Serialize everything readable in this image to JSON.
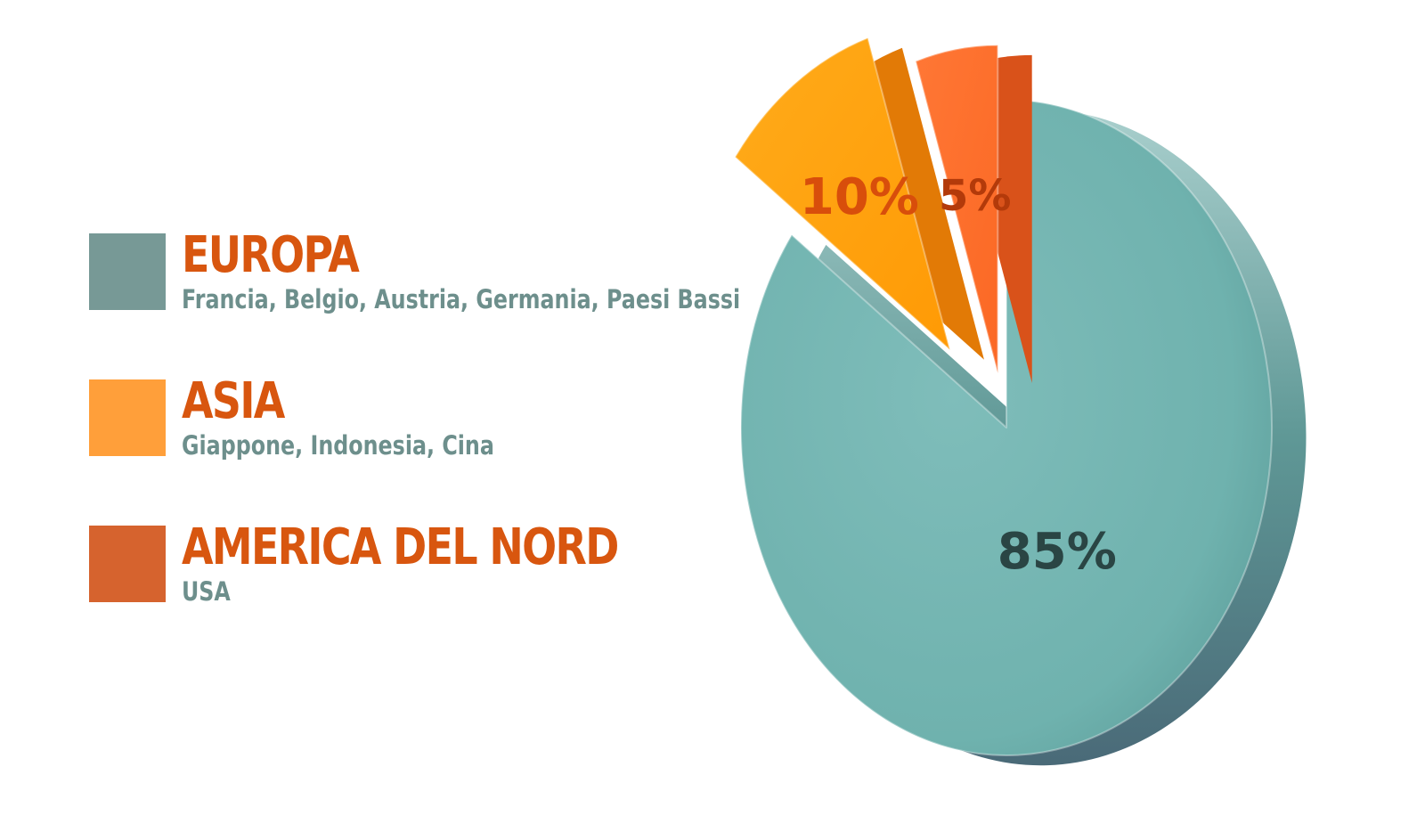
{
  "chart_data": {
    "type": "pie",
    "title": "",
    "categories": [
      "EUROPA",
      "ASIA",
      "AMERICA DEL NORD"
    ],
    "values": [
      85,
      10,
      5
    ],
    "labels": [
      "85%",
      "10%",
      "5%"
    ],
    "legend_position": "left",
    "series": [
      {
        "category": "EUROPA",
        "subtitle": "Francia, Belgio, Austria, Germania, Paesi Bassi",
        "value": 85,
        "label": "85%",
        "color": "#72b4b1",
        "swatch": "#779996",
        "label_color": "#2a4544"
      },
      {
        "category": "ASIA",
        "subtitle": "Giappone, Indonesia, Cina",
        "value": 10,
        "label": "10%",
        "color": "#ffa20a",
        "swatch": "#ff9f3a",
        "label_color": "#d84e0b"
      },
      {
        "category": "AMERICA DEL NORD",
        "subtitle": "USA",
        "value": 5,
        "label": "5%",
        "color": "#ff6e2e",
        "swatch": "#d6632e",
        "label_color": "#b33a0a"
      }
    ]
  }
}
